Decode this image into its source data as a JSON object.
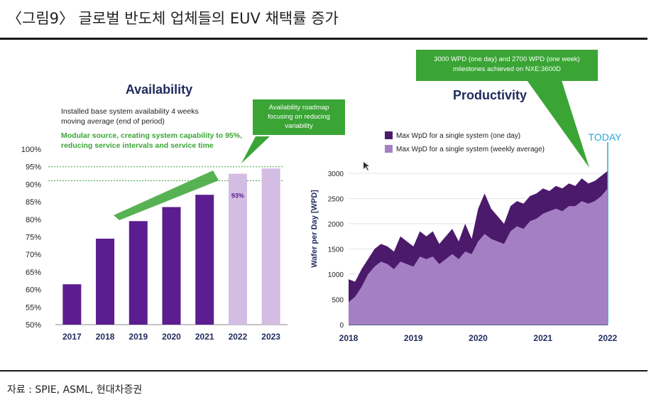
{
  "figure": {
    "title": "〈그림9〉 글로벌 반도체 업체들의 EUV 채택률 증가",
    "source": "자료 : SPIE, ASML, 현대차증권"
  },
  "colors": {
    "bar_actual": "#5b1d8f",
    "bar_roadmap": "#d3bde3",
    "green": "#3aa535",
    "area_daily": "#4b1a6b",
    "area_weekly": "#a57fc4",
    "today": "#2aa7d8",
    "title_navy": "#1f2a5c"
  },
  "chart_data": [
    {
      "type": "bar",
      "title": "Availability",
      "subtitle": "Installed base system availability 4 weeks moving average (end of period)",
      "subtitle_lines": [
        "Installed base system availability 4 weeks",
        "moving average (end of period)"
      ],
      "highlight_lines": [
        "Modular source, creating system capability to 95%,",
        "reducing service intervals and service time"
      ],
      "categories": [
        "2017",
        "2018",
        "2019",
        "2020",
        "2021",
        "2022",
        "2023"
      ],
      "values": [
        61.5,
        74.5,
        79.5,
        83.5,
        87,
        93,
        94.5
      ],
      "roadmap": [
        false,
        false,
        false,
        false,
        false,
        true,
        true
      ],
      "ylim": [
        50,
        100
      ],
      "yticks": [
        50,
        55,
        60,
        65,
        70,
        75,
        80,
        85,
        90,
        95,
        100
      ],
      "ytick_labels": [
        "50%",
        "55%",
        "60%",
        "65%",
        "70%",
        "75%",
        "80%",
        "85%",
        "90%",
        "95%",
        "100%"
      ],
      "reference_lines": [
        95,
        91
      ],
      "data_label": "93%",
      "callout_lines": [
        "Availability roadmap",
        "focusing on reducing",
        "variability"
      ]
    },
    {
      "type": "area",
      "title": "Productivity",
      "ylabel": "Wafer per Day [WPD]",
      "xlabel": "",
      "xticks": [
        "2018",
        "2019",
        "2020",
        "2021",
        "2022"
      ],
      "x_range": [
        2018,
        2022
      ],
      "ylim": [
        0,
        3000
      ],
      "yticks": [
        0,
        500,
        1000,
        1500,
        2000,
        2500,
        3000
      ],
      "ytick_labels": [
        "0",
        "500",
        "1000",
        "1500",
        "2000",
        "2500",
        "3000"
      ],
      "marker_label": "TODAY",
      "callout_lines": [
        "3000 WPD (one day) and 2700 WPD (one week)",
        "milestones achieved on NXE:3600D"
      ],
      "series": [
        {
          "name": "Max WpD for a single system (one day)",
          "x": [
            2018.0,
            2018.1,
            2018.2,
            2018.3,
            2018.4,
            2018.5,
            2018.6,
            2018.7,
            2018.8,
            2018.9,
            2019.0,
            2019.1,
            2019.2,
            2019.3,
            2019.4,
            2019.5,
            2019.6,
            2019.7,
            2019.8,
            2019.9,
            2020.0,
            2020.1,
            2020.2,
            2020.3,
            2020.4,
            2020.5,
            2020.6,
            2020.7,
            2020.8,
            2020.9,
            2021.0,
            2021.1,
            2021.2,
            2021.3,
            2021.4,
            2021.5,
            2021.6,
            2021.7,
            2021.8,
            2021.9,
            2022.0
          ],
          "values": [
            900,
            850,
            1100,
            1300,
            1500,
            1600,
            1550,
            1450,
            1750,
            1650,
            1550,
            1850,
            1750,
            1850,
            1600,
            1750,
            1900,
            1650,
            2000,
            1700,
            2300,
            2600,
            2300,
            2150,
            2000,
            2350,
            2450,
            2400,
            2550,
            2600,
            2700,
            2650,
            2750,
            2700,
            2800,
            2750,
            2900,
            2800,
            2850,
            2950,
            3050
          ]
        },
        {
          "name": "Max WpD for a single system (weekly average)",
          "x": [
            2018.0,
            2018.1,
            2018.2,
            2018.3,
            2018.4,
            2018.5,
            2018.6,
            2018.7,
            2018.8,
            2018.9,
            2019.0,
            2019.1,
            2019.2,
            2019.3,
            2019.4,
            2019.5,
            2019.6,
            2019.7,
            2019.8,
            2019.9,
            2020.0,
            2020.1,
            2020.2,
            2020.3,
            2020.4,
            2020.5,
            2020.6,
            2020.7,
            2020.8,
            2020.9,
            2021.0,
            2021.1,
            2021.2,
            2021.3,
            2021.4,
            2021.5,
            2021.6,
            2021.7,
            2021.8,
            2021.9,
            2022.0
          ],
          "values": [
            450,
            550,
            750,
            1000,
            1150,
            1250,
            1200,
            1100,
            1250,
            1200,
            1150,
            1350,
            1300,
            1350,
            1200,
            1300,
            1400,
            1300,
            1450,
            1400,
            1650,
            1800,
            1700,
            1650,
            1600,
            1850,
            1950,
            1900,
            2050,
            2100,
            2200,
            2250,
            2300,
            2250,
            2350,
            2350,
            2450,
            2400,
            2450,
            2550,
            2700
          ]
        }
      ]
    }
  ]
}
